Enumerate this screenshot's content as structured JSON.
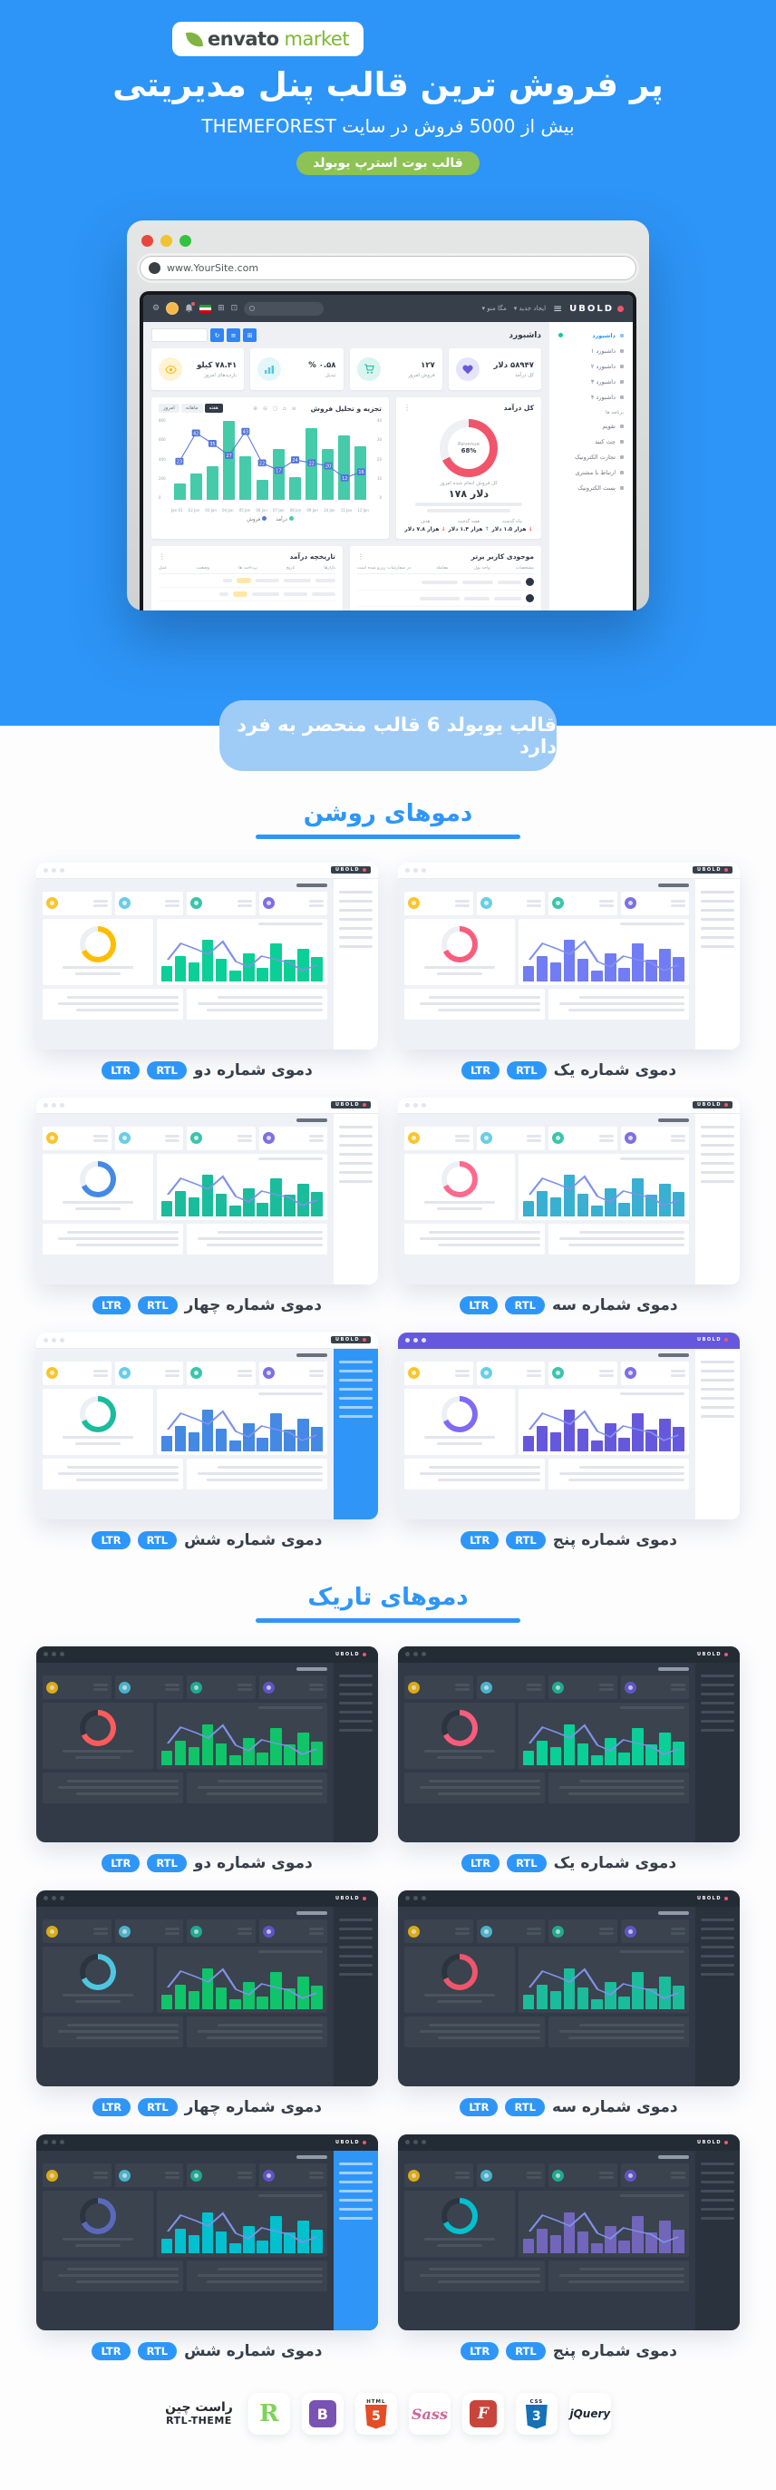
{
  "colors": {
    "brand_blue": "#2e96f8",
    "badge_green": "#8dc255",
    "banner_blue": "#9fccf7"
  },
  "header": {
    "logo_envato": "envato",
    "logo_market": "market",
    "title": "پر فروش ترین قالب پنل مدیریتی",
    "subtitle": "بیش از 5000 فروش در سایت THEMEFOREST",
    "badge": "قالب بوت استرپ یوبولد"
  },
  "browser": {
    "url": "www.YourSite.com"
  },
  "mockup": {
    "brand": "UBOLD",
    "nav": {
      "create": "ایجاد جدید",
      "mega": "مگا منو"
    },
    "sidebar": {
      "items": [
        {
          "label": "داشبورد",
          "type": "active"
        },
        {
          "label": "داشبورد ۱"
        },
        {
          "label": "داشبورد ۲"
        },
        {
          "label": "داشبورد ۳"
        },
        {
          "label": "داشبورد ۴"
        },
        {
          "label": "برنامه ها",
          "type": "header"
        },
        {
          "label": "تقویم"
        },
        {
          "label": "چت کنید"
        },
        {
          "label": "تجارت الکترونیک"
        },
        {
          "label": "ارتباط با مشتری"
        },
        {
          "label": "پست الکترونیک"
        }
      ]
    },
    "page_title": "داشبورد",
    "stats": [
      {
        "value": "۵۸۹۴۷ دلار",
        "label": "کل درآمد",
        "color": "#6658dd"
      },
      {
        "value": "۱۲۷",
        "label": "فروش امروز",
        "color": "#1abc9c"
      },
      {
        "value": "۰.۵۸ %",
        "label": "تبدیل",
        "color": "#4fc6e1"
      },
      {
        "value": "۷۸.۴۱ کیلو",
        "label": "بازدیدهای امروز",
        "color": "#f9bc0b"
      }
    ],
    "sales_chart": {
      "title": "تجزیه و تحلیل فروش",
      "tabs": [
        "امروز",
        "ماهانه",
        "هفته"
      ],
      "active_tab": "هفته",
      "x": [
        "Jan 01",
        "02 Jan",
        "03 Jan",
        "04 Jan",
        "05 Jan",
        "06 Jan",
        "07 Jan",
        "08 Jan",
        "09 Jan",
        "10 Jan",
        "11 Jan",
        "12 Jan"
      ],
      "bars": [
        540,
        650,
        510,
        720,
        230,
        510,
        200,
        440,
        790,
        340,
        260,
        160
      ],
      "line": [
        23,
        42,
        35,
        27,
        43,
        22,
        17,
        24,
        22,
        20,
        12,
        16
      ],
      "y_left": [
        800,
        600,
        400,
        200,
        0
      ],
      "y_right": [
        40,
        30,
        20,
        10,
        0
      ],
      "legend": [
        {
          "label": "درآمد",
          "color": "#45cba9"
        },
        {
          "label": "فروش",
          "color": "#5273dc"
        }
      ]
    },
    "revenue_card": {
      "title": "کل درآمد",
      "donut_label": "Revenue",
      "donut_pct": "68%",
      "subtitle": "کل فروش انجام شده امروز",
      "amount": "دلار ۱۷۸",
      "cols": [
        {
          "h": "ماه گذشته",
          "v": "هزار ۱.۵ دلار",
          "dir": "down"
        },
        {
          "h": "هفته گذشته",
          "v": "هزار ۱.۴ دلار",
          "dir": "up"
        },
        {
          "h": "هدف",
          "v": "هزار ۷.۸ دلار",
          "dir": "down"
        }
      ]
    },
    "tables": [
      {
        "title": "موجودی کاربر برتر",
        "headers": [
          "مشخصات",
          "واحد پول",
          "معامله",
          "در سفارشات رزرو شده است"
        ]
      },
      {
        "title": "تاریخچه درآمد",
        "headers": [
          "بازارها",
          "تاریخ",
          "پرداخت ها",
          "وضعیت",
          "عمل"
        ]
      }
    ]
  },
  "banner": "قالب یوبولد 6 قالب منحصر به فرد دارد",
  "badges": {
    "ltr": "LTR",
    "rtl": "RTL"
  },
  "thumb_bars": [
    45,
    62,
    40,
    72,
    25,
    52,
    20,
    42,
    78,
    35,
    48,
    28
  ],
  "sections": {
    "light": {
      "title": "دموهای روشن",
      "base": {
        "nav": "#ffffff",
        "navline": "#e7eaf0",
        "side": "#ffffff",
        "sph": "#dfe3ea",
        "bg": "#eef1f6",
        "card": "#ffffff",
        "ph": "#e2e6ec",
        "ring": "#eceff3",
        "chip": "#36404a",
        "chiptxt": "#ffffff",
        "txt": "#46505c"
      },
      "demos": [
        {
          "label": "دموی شماره یک",
          "colors": {
            "accent": "#727cf5",
            "donut": "#fa5c7c"
          }
        },
        {
          "label": "دموی شماره دو",
          "colors": {
            "accent": "#0acf97",
            "donut": "#ffbc00"
          }
        },
        {
          "label": "دموی شماره سه",
          "colors": {
            "accent": "#39afd1",
            "donut": "#fd6a8e"
          }
        },
        {
          "label": "دموی شماره چهار",
          "colors": {
            "accent": "#1abc9c",
            "donut": "#4489e4"
          }
        },
        {
          "label": "دموی شماره پنج",
          "colors": {
            "accent": "#6658dd",
            "donut": "#8069f3",
            "nav": "#6658dd",
            "navline": "#6658dd",
            "chip": "transparent"
          }
        },
        {
          "label": "دموی شماره شش",
          "colors": {
            "accent": "#4489e4",
            "donut": "#1abc9c",
            "side": "#2f96f8",
            "sph": "rgba(255,255,255,.55)"
          }
        }
      ]
    },
    "dark": {
      "title": "دموهای تاریک",
      "base": {
        "nav": "#232b35",
        "navline": "#232b35",
        "side": "#2a323d",
        "sph": "#434e59",
        "bg": "#313a46",
        "card": "#3a434e",
        "ph": "#49545f",
        "ring": "#2c343f",
        "chip": "transparent",
        "chiptxt": "#ffffff",
        "txt": "#a9b4c2"
      },
      "demos": [
        {
          "label": "دموی شماره یک",
          "colors": {
            "accent": "#0acf97",
            "donut": "#fa5c7c"
          }
        },
        {
          "label": "دموی شماره دو",
          "colors": {
            "accent": "#10c469",
            "donut": "#ff5b5b"
          }
        },
        {
          "label": "دموی شماره سه",
          "colors": {
            "accent": "#1abc9c",
            "donut": "#f1556c"
          }
        },
        {
          "label": "دموی شماره چهار",
          "colors": {
            "accent": "#10c469",
            "donut": "#4fc6e1"
          }
        },
        {
          "label": "دموی شماره پنج",
          "colors": {
            "accent": "#7266ba",
            "donut": "#02c0ce"
          }
        },
        {
          "label": "دموی شماره شش",
          "colors": {
            "accent": "#02c0ce",
            "donut": "#5b69bc",
            "side": "#2f96f8",
            "sph": "rgba(255,255,255,.55)"
          }
        }
      ]
    }
  },
  "footer": {
    "icons": [
      {
        "name": "rtl-theme-wordmark",
        "line1": "راست چین",
        "line2": "RTL-THEME"
      },
      {
        "name": "rtl-theme",
        "glyph": "R"
      },
      {
        "name": "bootstrap",
        "glyph": "B"
      },
      {
        "name": "html5",
        "glyph": "5",
        "tag": "HTML"
      },
      {
        "name": "sass",
        "glyph": "Sass"
      },
      {
        "name": "font-f",
        "glyph": "F"
      },
      {
        "name": "css3",
        "glyph": "3",
        "tag": "CSS"
      },
      {
        "name": "jquery",
        "glyph": "jQuery"
      }
    ]
  }
}
